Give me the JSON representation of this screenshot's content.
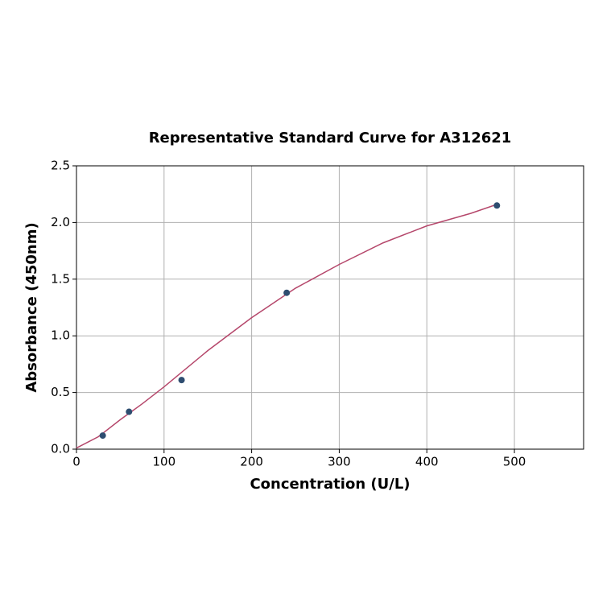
{
  "chart_data": {
    "type": "scatter",
    "title": "Representative Standard Curve for A312621",
    "x_label": "Concentration (U/L)",
    "y_label": "Absorbance (450nm)",
    "series": [
      {
        "color": "#2e4d70",
        "x": [
          30,
          60,
          120,
          240,
          480
        ],
        "values": [
          0.12,
          0.33,
          0.61,
          1.38,
          2.15
        ]
      },
      {
        "color": "#b5476b",
        "line": true,
        "x": [
          0,
          25,
          50,
          75,
          100,
          150,
          200,
          250,
          300,
          350,
          400,
          450,
          480
        ],
        "values": [
          0.01,
          0.11,
          0.26,
          0.4,
          0.55,
          0.87,
          1.16,
          1.42,
          1.63,
          1.82,
          1.97,
          2.08,
          2.16
        ]
      }
    ],
    "xlim": [
      0,
      579
    ],
    "ylim": [
      0,
      2.5
    ],
    "xticks": [
      0,
      100,
      200,
      300,
      400,
      500
    ],
    "yticks": [
      {
        "value": 0,
        "label": "0.0"
      },
      0.5,
      {
        "value": 1,
        "label": "1.0"
      },
      1.5,
      {
        "value": 2,
        "label": "2.0"
      },
      2.5
    ],
    "grid": true
  }
}
